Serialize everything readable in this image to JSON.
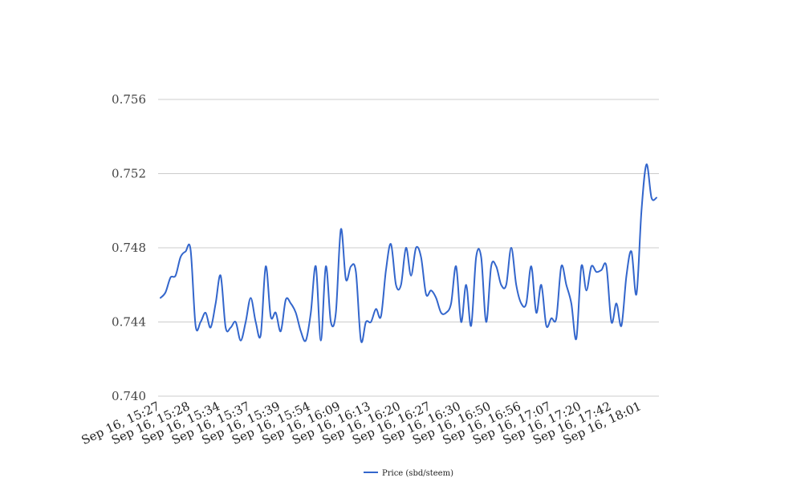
{
  "chart_data": {
    "type": "line",
    "title": "",
    "xlabel": "",
    "ylabel": "",
    "ylim": [
      0.74,
      0.756
    ],
    "yticks": [
      "0.740",
      "0.744",
      "0.748",
      "0.752",
      "0.756"
    ],
    "grid": true,
    "legend_position": "bottom",
    "x_tick_labels": [
      "Sep 16, 15:27",
      "Sep 16, 15:28",
      "Sep 16, 15:34",
      "Sep 16, 15:37",
      "Sep 16, 15:39",
      "Sep 16, 15:54",
      "Sep 16, 16:09",
      "Sep 16, 16:13",
      "Sep 16, 16:20",
      "Sep 16, 16:27",
      "Sep 16, 16:30",
      "Sep 16, 16:50",
      "Sep 16, 16:56",
      "Sep 16, 17:07",
      "Sep 16, 17:20",
      "Sep 16, 17:42",
      "Sep 16, 18:01"
    ],
    "series": [
      {
        "name": "Price (sbd/steem)",
        "color": "#3366cc",
        "values": [
          0.7453,
          0.7456,
          0.7464,
          0.7465,
          0.7475,
          0.7478,
          0.7479,
          0.7438,
          0.744,
          0.7445,
          0.7437,
          0.745,
          0.7465,
          0.7437,
          0.7437,
          0.744,
          0.743,
          0.744,
          0.7453,
          0.744,
          0.7433,
          0.747,
          0.7443,
          0.7445,
          0.7435,
          0.7452,
          0.745,
          0.7445,
          0.7435,
          0.743,
          0.7445,
          0.747,
          0.743,
          0.747,
          0.744,
          0.7445,
          0.749,
          0.7463,
          0.747,
          0.7467,
          0.743,
          0.744,
          0.744,
          0.7447,
          0.7443,
          0.7468,
          0.7482,
          0.746,
          0.746,
          0.748,
          0.7465,
          0.748,
          0.7475,
          0.7455,
          0.7457,
          0.7453,
          0.7445,
          0.7445,
          0.745,
          0.747,
          0.744,
          0.746,
          0.7438,
          0.7475,
          0.7475,
          0.744,
          0.747,
          0.747,
          0.746,
          0.746,
          0.748,
          0.746,
          0.745,
          0.745,
          0.747,
          0.7445,
          0.746,
          0.7438,
          0.7442,
          0.7442,
          0.747,
          0.746,
          0.745,
          0.7431,
          0.747,
          0.7457,
          0.747,
          0.7467,
          0.7468,
          0.747,
          0.744,
          0.745,
          0.7438,
          0.7465,
          0.7478,
          0.7455,
          0.75,
          0.7525,
          0.7507,
          0.7507
        ]
      }
    ]
  }
}
